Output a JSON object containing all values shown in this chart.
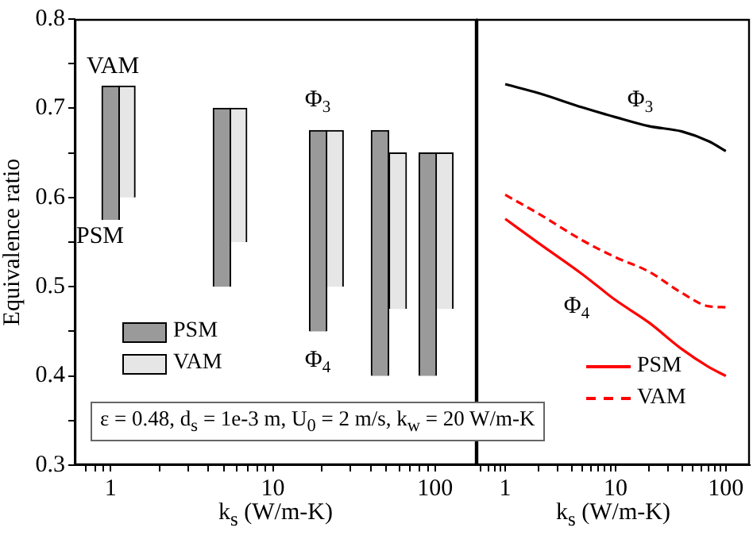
{
  "chart_data": [
    {
      "type": "bar",
      "xlabel": "k$_{s}$ (W/m-K)",
      "ylabel": "Equivalence ratio",
      "log": "x",
      "xlim": [
        0.6,
        180
      ],
      "ylim": [
        0.3,
        0.8
      ],
      "xticks": [
        {
          "value": 0.7,
          "label": null
        },
        {
          "value": 0.8,
          "label": null
        },
        {
          "value": 0.9,
          "label": null
        },
        1,
        {
          "value": 2,
          "label": null
        },
        {
          "value": 3,
          "label": null
        },
        {
          "value": 4,
          "label": null
        },
        {
          "value": 5,
          "label": null
        },
        {
          "value": 6,
          "label": null
        },
        {
          "value": 7,
          "label": null
        },
        {
          "value": 8,
          "label": null
        },
        {
          "value": 9,
          "label": null
        },
        10,
        {
          "value": 20,
          "label": null
        },
        {
          "value": 30,
          "label": null
        },
        {
          "value": 40,
          "label": null
        },
        {
          "value": 50,
          "label": null
        },
        {
          "value": 60,
          "label": null
        },
        {
          "value": 70,
          "label": null
        },
        {
          "value": 80,
          "label": null
        },
        {
          "value": 90,
          "label": null
        },
        100
      ],
      "yticks": [
        0.3,
        {
          "value": 0.35,
          "label": null
        },
        0.4,
        {
          "value": 0.45,
          "label": null
        },
        0.5,
        {
          "value": 0.55,
          "label": null
        },
        0.6,
        {
          "value": 0.65,
          "label": null
        },
        0.7,
        {
          "value": 0.75,
          "label": null
        },
        0.8
      ],
      "legend": "left",
      "grid": false,
      "series": [
        {
          "name": "PSM",
          "color": "#9a9a9a",
          "x": [
            1,
            4.85,
            19,
            45.7,
            90
          ],
          "base": [
            0.575,
            0.5,
            0.45,
            0.4,
            0.4
          ],
          "values": [
            0.15,
            0.2,
            0.225,
            0.275,
            0.25
          ]
        },
        {
          "name": "VAM",
          "color": "#e6e6e6",
          "x": [
            1.25,
            6.1,
            24,
            58.8,
            114
          ],
          "base": [
            0.6,
            0.55,
            0.5,
            0.475,
            0.475
          ],
          "values": [
            0.125,
            0.15,
            0.175,
            0.175,
            0.175
          ]
        }
      ],
      "annotations": [
        "VAM",
        "PSM",
        "Φ$_{3}$",
        "Φ$_{4}$",
        "ε = 0.48, d$_{s}$ = 1e-3 m, U$_{0}$ = 2 m/s, k$_{w}$ = 20 W/m-K"
      ]
    },
    {
      "type": "area",
      "xlabel": "k$_{s}$ (W/m-K)",
      "log": "x",
      "xlim": [
        0.55,
        165
      ],
      "ylim": [
        0.3,
        0.8
      ],
      "tick_labels": "x",
      "xticks": [
        {
          "value": 0.6,
          "label": null
        },
        {
          "value": 0.7,
          "label": null
        },
        {
          "value": 0.8,
          "label": null
        },
        {
          "value": 0.9,
          "label": null
        },
        1,
        {
          "value": 2,
          "label": null
        },
        {
          "value": 3,
          "label": null
        },
        {
          "value": 4,
          "label": null
        },
        {
          "value": 5,
          "label": null
        },
        {
          "value": 6,
          "label": null
        },
        {
          "value": 7,
          "label": null
        },
        {
          "value": 8,
          "label": null
        },
        {
          "value": 9,
          "label": null
        },
        10,
        {
          "value": 20,
          "label": null
        },
        {
          "value": 30,
          "label": null
        },
        {
          "value": 40,
          "label": null
        },
        {
          "value": 50,
          "label": null
        },
        {
          "value": 60,
          "label": null
        },
        {
          "value": 70,
          "label": null
        },
        {
          "value": 80,
          "label": null
        },
        {
          "value": 90,
          "label": null
        },
        100
      ],
      "yticks": [
        {
          "value": 0.3,
          "label": null
        },
        {
          "value": 0.35,
          "label": null
        },
        {
          "value": 0.4,
          "label": null
        },
        {
          "value": 0.45,
          "label": null
        },
        {
          "value": 0.5,
          "label": null
        },
        {
          "value": 0.55,
          "label": null
        },
        {
          "value": 0.6,
          "label": null
        },
        {
          "value": 0.65,
          "label": null
        },
        {
          "value": 0.7,
          "label": null
        },
        {
          "value": 0.75,
          "label": null
        },
        {
          "value": 0.8,
          "label": null
        }
      ],
      "legend": "bottom right",
      "grid": false,
      "x": [
        1,
        2,
        5,
        10,
        20,
        40,
        70,
        100
      ],
      "series": [
        {
          "type": "line",
          "color": "#000000",
          "values": [
            0.727,
            0.717,
            0.701,
            0.69,
            0.68,
            0.674,
            0.663,
            0.652
          ]
        },
        {
          "name": "PSM",
          "type": "line",
          "color": "#ff0000",
          "values": [
            0.576,
            0.549,
            0.514,
            0.485,
            0.46,
            0.43,
            0.41,
            0.4
          ]
        },
        {
          "name": "VAM",
          "type": "line",
          "color": "#ff0000",
          "line_style": "dashed",
          "values": [
            0.603,
            0.582,
            0.552,
            0.533,
            0.517,
            0.493,
            0.478,
            0.477
          ]
        }
      ],
      "annotations": [
        "Φ$_{3}$",
        "Φ$_{4}$"
      ]
    }
  ]
}
